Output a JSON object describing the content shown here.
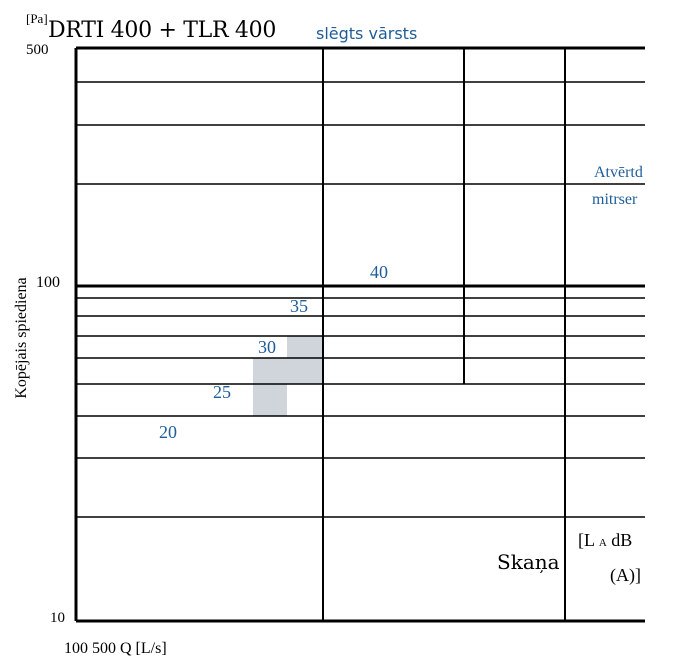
{
  "chart_data": {
    "type": "line",
    "title": "DRTI 400 + TLR 400",
    "subtitle": "slēgts vārsts",
    "unit_label": "[Pa]",
    "ylabel": "Kopējais spiediena",
    "xlabel": "100 500 Q [L/s]",
    "y_ticks": {
      "max": "500",
      "mid": "100",
      "min": "10"
    },
    "ylim": [
      10,
      500
    ],
    "yscale": "log",
    "grid": true,
    "series": [
      {
        "label": "20",
        "value": 20
      },
      {
        "label": "25",
        "value": 25
      },
      {
        "label": "30",
        "value": 30
      },
      {
        "label": "35",
        "value": 35
      },
      {
        "label": "40",
        "value": 40
      }
    ],
    "annotations": {
      "open_damper_line1": "Atvērtd",
      "open_damper_line2": "mitrser",
      "sound": "Skaņa",
      "sound_unit_open": "[L",
      "sound_unit_sub": "A",
      "sound_unit_db": " dB",
      "sound_unit_close": "(A)]"
    },
    "colors": {
      "label_blue": "#1f5c99",
      "shade": "#d0d5dc",
      "grid": "#000000"
    }
  }
}
